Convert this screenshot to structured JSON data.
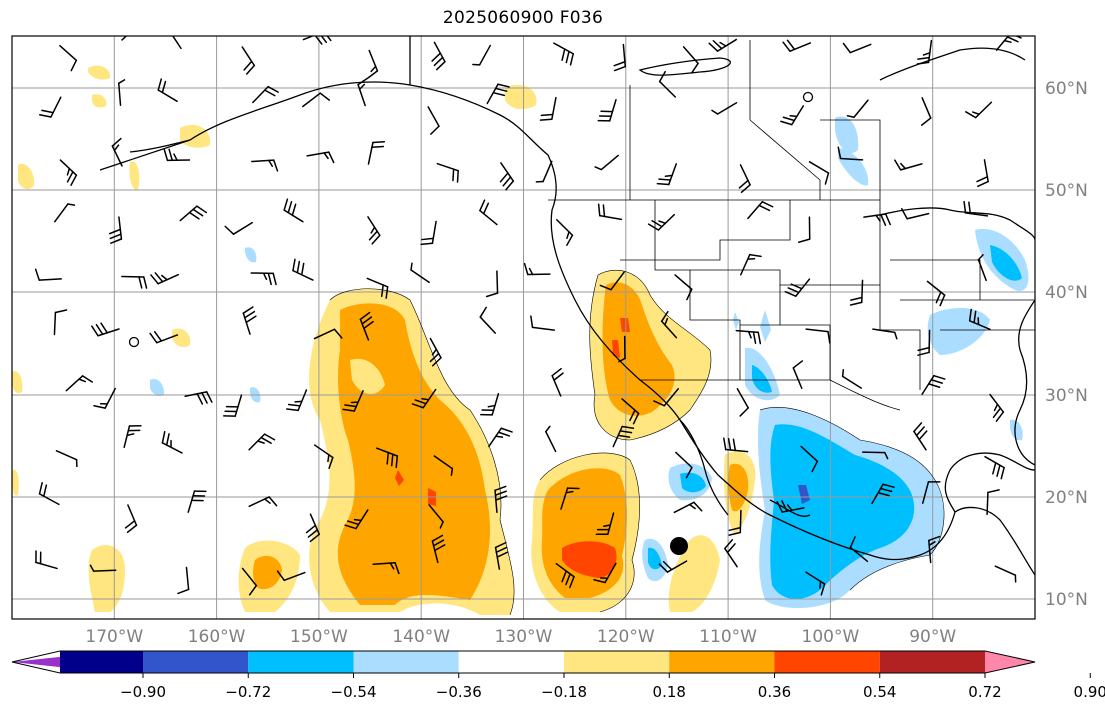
{
  "title": "2025060900 F036",
  "map": {
    "lon_ticks": [
      "170°W",
      "160°W",
      "150°W",
      "140°W",
      "130°W",
      "120°W",
      "110°W",
      "100°W",
      "90°W"
    ],
    "lat_ticks": [
      "60°N",
      "50°N",
      "40°N",
      "30°N",
      "20°N",
      "10°N"
    ],
    "extent": {
      "lon_min": -180,
      "lon_max": -80,
      "lat_min": 8,
      "lat_max": 65
    },
    "grid": true
  },
  "colorbar": {
    "ticks": [
      "−0.90",
      "−0.72",
      "−0.54",
      "−0.36",
      "−0.18",
      "0.18",
      "0.36",
      "0.54",
      "0.72",
      "0.90"
    ],
    "colors": [
      "#9932cc",
      "#00008b",
      "#3355cc",
      "#00bfff",
      "#aaddff",
      "#ffffff",
      "#ffe680",
      "#ffa500",
      "#ff4500",
      "#b22222",
      "#ff88aa"
    ],
    "extend": "both"
  },
  "icons": {
    "marker": "black-dot-icon",
    "barbs": "wind-barb-icon"
  }
}
